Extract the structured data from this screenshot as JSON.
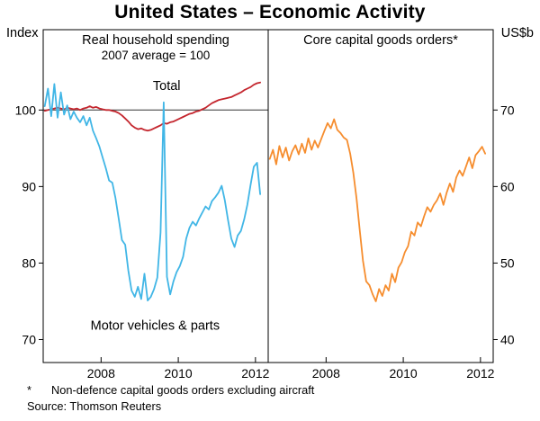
{
  "title": "United States – Economic Activity",
  "units": {
    "left": "Index",
    "right": "US$b"
  },
  "footnotes": {
    "marker": "*",
    "note": "Non-defence capital goods orders excluding aircraft",
    "source": "Source: Thomson Reuters"
  },
  "chart_data": [
    {
      "type": "line",
      "panel": "left",
      "title": "Real household spending",
      "subtitle": "2007 average = 100",
      "axis_unit": "Index",
      "ylim": [
        67,
        110.5
      ],
      "yticks": [
        70,
        80,
        90,
        100
      ],
      "xlim": [
        2006.5,
        2012.33
      ],
      "xticks": [
        2008,
        2010,
        2012
      ],
      "reference_line": 100,
      "x_start": 2006.54,
      "frequency": "monthly",
      "grid": "off",
      "series": [
        {
          "id": "total",
          "name": "Total",
          "color": "#C4262E",
          "label": {
            "text": "Total",
            "x": 2009.7,
            "y": 102.6
          },
          "values": [
            99.9,
            100.0,
            100.1,
            100.2,
            100.3,
            100.2,
            100.1,
            100.3,
            100.2,
            100.1,
            100.2,
            100.0,
            100.2,
            100.3,
            100.5,
            100.3,
            100.4,
            100.2,
            100.1,
            100.0,
            100.0,
            99.9,
            99.8,
            99.6,
            99.3,
            98.9,
            98.5,
            98.0,
            97.7,
            97.5,
            97.6,
            97.4,
            97.3,
            97.4,
            97.6,
            97.8,
            98.0,
            98.3,
            98.2,
            98.4,
            98.5,
            98.7,
            98.9,
            99.1,
            99.3,
            99.5,
            99.6,
            99.8,
            99.9,
            100.1,
            100.3,
            100.6,
            100.9,
            101.1,
            101.3,
            101.4,
            101.5,
            101.6,
            101.7,
            101.9,
            102.1,
            102.3,
            102.6,
            102.8,
            103.0,
            103.3,
            103.5,
            103.6
          ]
        },
        {
          "id": "motor-vehicles",
          "name": "Motor vehicles & parts",
          "color": "#41B6E6",
          "label": {
            "text": "Motor vehicles & parts",
            "x": 2009.4,
            "y": 71.3
          },
          "values": [
            100.5,
            102.8,
            99.2,
            103.4,
            99.0,
            102.3,
            99.4,
            100.6,
            98.8,
            99.8,
            99.0,
            98.4,
            99.2,
            98.0,
            99.0,
            97.3,
            96.3,
            95.2,
            93.8,
            92.4,
            90.8,
            90.5,
            88.5,
            85.8,
            83.0,
            82.4,
            79.0,
            76.4,
            75.6,
            76.9,
            75.3,
            78.6,
            75.1,
            75.6,
            76.6,
            78.1,
            84.0,
            101.0,
            78.2,
            75.9,
            77.6,
            78.8,
            79.6,
            80.8,
            83.2,
            84.6,
            85.4,
            84.9,
            85.8,
            86.6,
            87.4,
            87.0,
            88.1,
            88.6,
            89.2,
            90.1,
            88.2,
            85.6,
            83.2,
            82.1,
            83.6,
            84.2,
            85.7,
            87.6,
            90.2,
            92.6,
            93.1,
            89.0
          ]
        }
      ]
    },
    {
      "type": "line",
      "panel": "right",
      "title": "Core capital goods orders*",
      "subtitle": "",
      "axis_unit": "US$b",
      "ylim": [
        37,
        80.5
      ],
      "yticks": [
        40,
        50,
        60,
        70
      ],
      "xlim": [
        2006.5,
        2012.33
      ],
      "xticks": [
        2008,
        2010,
        2012
      ],
      "reference_line": null,
      "x_start": 2006.54,
      "frequency": "monthly",
      "grid": "off",
      "series": [
        {
          "id": "core-capital-goods",
          "name": "Core capital goods orders",
          "color": "#F68D2E",
          "label": null,
          "values": [
            63.6,
            64.8,
            62.9,
            65.3,
            63.8,
            65.1,
            63.4,
            64.6,
            65.4,
            64.2,
            65.6,
            64.4,
            66.3,
            64.8,
            66.0,
            65.1,
            66.2,
            67.3,
            68.3,
            67.6,
            68.8,
            67.4,
            67.0,
            66.4,
            66.1,
            64.3,
            61.8,
            58.4,
            54.2,
            50.3,
            47.6,
            47.1,
            45.9,
            45.0,
            46.6,
            45.7,
            47.1,
            46.4,
            48.6,
            47.5,
            49.4,
            50.1,
            51.4,
            52.2,
            54.1,
            53.6,
            55.3,
            54.8,
            56.1,
            57.3,
            56.7,
            57.6,
            58.2,
            59.1,
            57.6,
            59.2,
            60.4,
            59.3,
            61.2,
            62.1,
            61.4,
            62.6,
            63.8,
            62.4,
            64.1,
            64.6,
            65.2,
            64.3
          ]
        }
      ]
    }
  ]
}
